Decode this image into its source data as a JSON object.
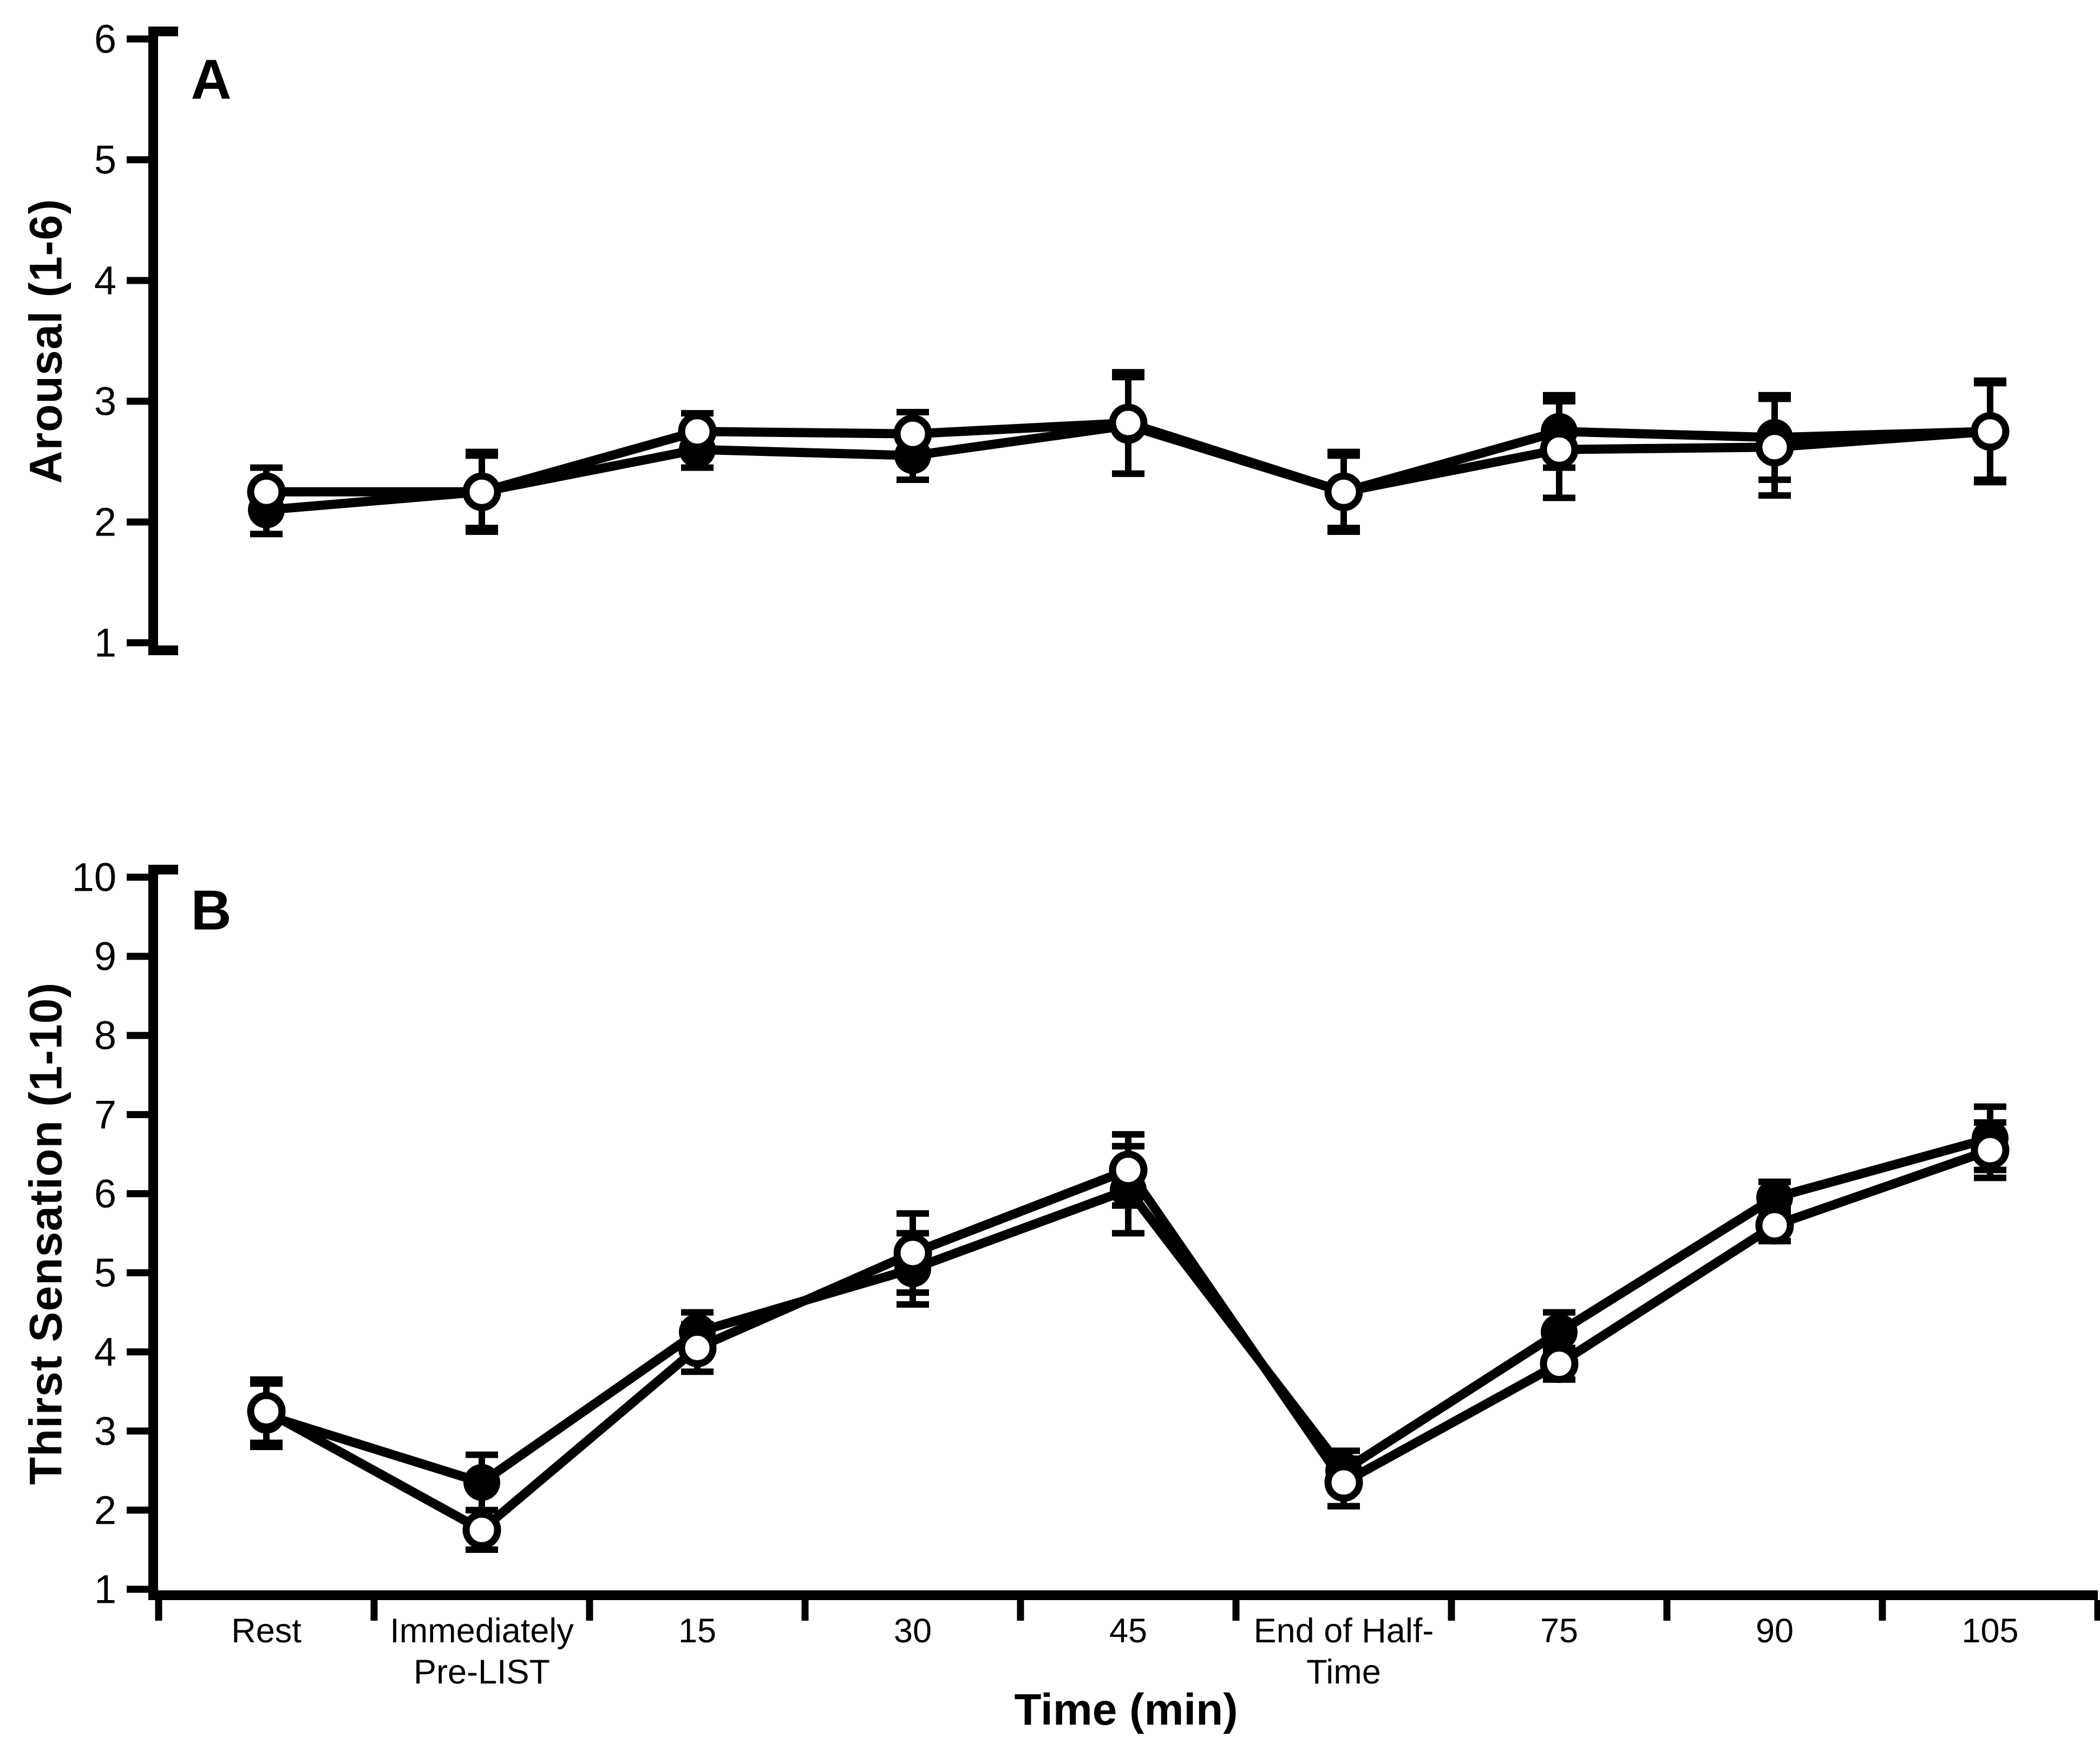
{
  "figure": {
    "background": "#ffffff",
    "ink": "#000000",
    "x_axis_label": "Time (min)"
  },
  "chart_data": [
    {
      "type": "line",
      "panel_letter": "A",
      "ylabel": "Arousal (1-6)",
      "ylim": [
        1,
        6
      ],
      "yticks": [
        1,
        2,
        3,
        4,
        5,
        6
      ],
      "grid": false,
      "legend": "none",
      "categories": [
        "Rest",
        "Immediately\nPre-LIST",
        "15",
        "30",
        "45",
        "End of Half-\nTime",
        "75",
        "90",
        "105"
      ],
      "series": [
        {
          "name": "filled-circle-trial",
          "marker": "filled",
          "values": [
            2.1,
            2.25,
            2.6,
            2.55,
            2.8,
            2.25,
            2.75,
            2.7,
            2.75
          ],
          "errors": [
            0.2,
            0.3,
            0.15,
            0.2,
            0.4,
            0.3,
            0.3,
            0.35,
            0.4
          ]
        },
        {
          "name": "open-circle-trial",
          "marker": "open",
          "values": [
            2.25,
            2.25,
            2.75,
            2.73,
            2.82,
            2.25,
            2.6,
            2.62,
            2.75
          ],
          "errors": [
            0.2,
            0.33,
            0.15,
            0.18,
            0.42,
            0.33,
            0.4,
            0.4,
            0.42
          ]
        }
      ]
    },
    {
      "type": "line",
      "panel_letter": "B",
      "ylabel": "Thirst Sensation (1-10)",
      "ylim": [
        1,
        10
      ],
      "yticks": [
        1,
        2,
        3,
        4,
        5,
        6,
        7,
        8,
        9,
        10
      ],
      "grid": false,
      "legend": "none",
      "categories": [
        "Rest",
        "Immediately\nPre-LIST",
        "15",
        "30",
        "45",
        "End of Half-\nTime",
        "75",
        "90",
        "105"
      ],
      "series": [
        {
          "name": "filled-circle-trial",
          "marker": "filled",
          "values": [
            3.2,
            2.35,
            4.25,
            5.05,
            6.05,
            2.5,
            4.25,
            5.95,
            6.7
          ],
          "errors": [
            0.4,
            0.35,
            0.25,
            0.45,
            0.55,
            0.25,
            0.25,
            0.2,
            0.4
          ]
        },
        {
          "name": "open-circle-trial",
          "marker": "open",
          "values": [
            3.25,
            1.75,
            4.05,
            5.25,
            6.3,
            2.35,
            3.85,
            5.6,
            6.55
          ],
          "errors": [
            0.4,
            0.25,
            0.3,
            0.5,
            0.45,
            0.3,
            0.2,
            0.2,
            0.35
          ]
        }
      ]
    }
  ],
  "labels": {
    "panel_a_letter": "A",
    "panel_b_letter": "B",
    "panel_a_ylabel": "Arousal (1-6)",
    "panel_b_ylabel": "Thirst Sensation (1-10)",
    "x_axis_label": "Time (min)"
  }
}
